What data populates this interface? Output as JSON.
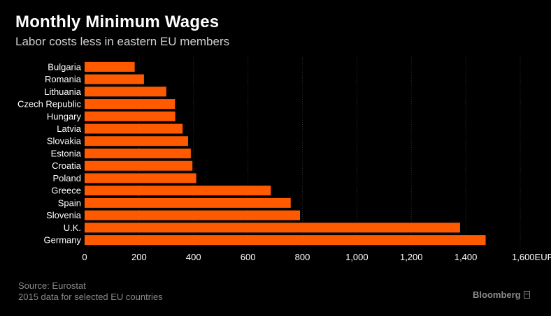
{
  "header": {
    "title": "Monthly Minimum Wages",
    "subtitle": "Labor costs less in eastern EU members"
  },
  "footer": {
    "source": "Source: Eurostat",
    "note": "2015 data for selected EU countries",
    "brand": "Bloomberg"
  },
  "chart_data": {
    "type": "bar",
    "orientation": "horizontal",
    "title": "Monthly Minimum Wages",
    "subtitle": "Labor costs less in eastern EU members",
    "categories": [
      "Bulgaria",
      "Romania",
      "Lithuania",
      "Czech Republic",
      "Hungary",
      "Latvia",
      "Slovakia",
      "Estonia",
      "Croatia",
      "Poland",
      "Greece",
      "Spain",
      "Slovenia",
      "U.K.",
      "Germany"
    ],
    "values": [
      184,
      218,
      300,
      332,
      333,
      360,
      380,
      390,
      396,
      410,
      684,
      757,
      791,
      1379,
      1473
    ],
    "xlim": [
      0,
      1600
    ],
    "xticks": [
      0,
      200,
      400,
      600,
      800,
      1000,
      1200,
      1400,
      1600
    ],
    "xtick_labels": [
      "0",
      "200",
      "400",
      "600",
      "800",
      "1,000",
      "1,200",
      "1,400",
      "1,600EUR"
    ],
    "bar_color": "#ff5a00",
    "grid": true
  }
}
